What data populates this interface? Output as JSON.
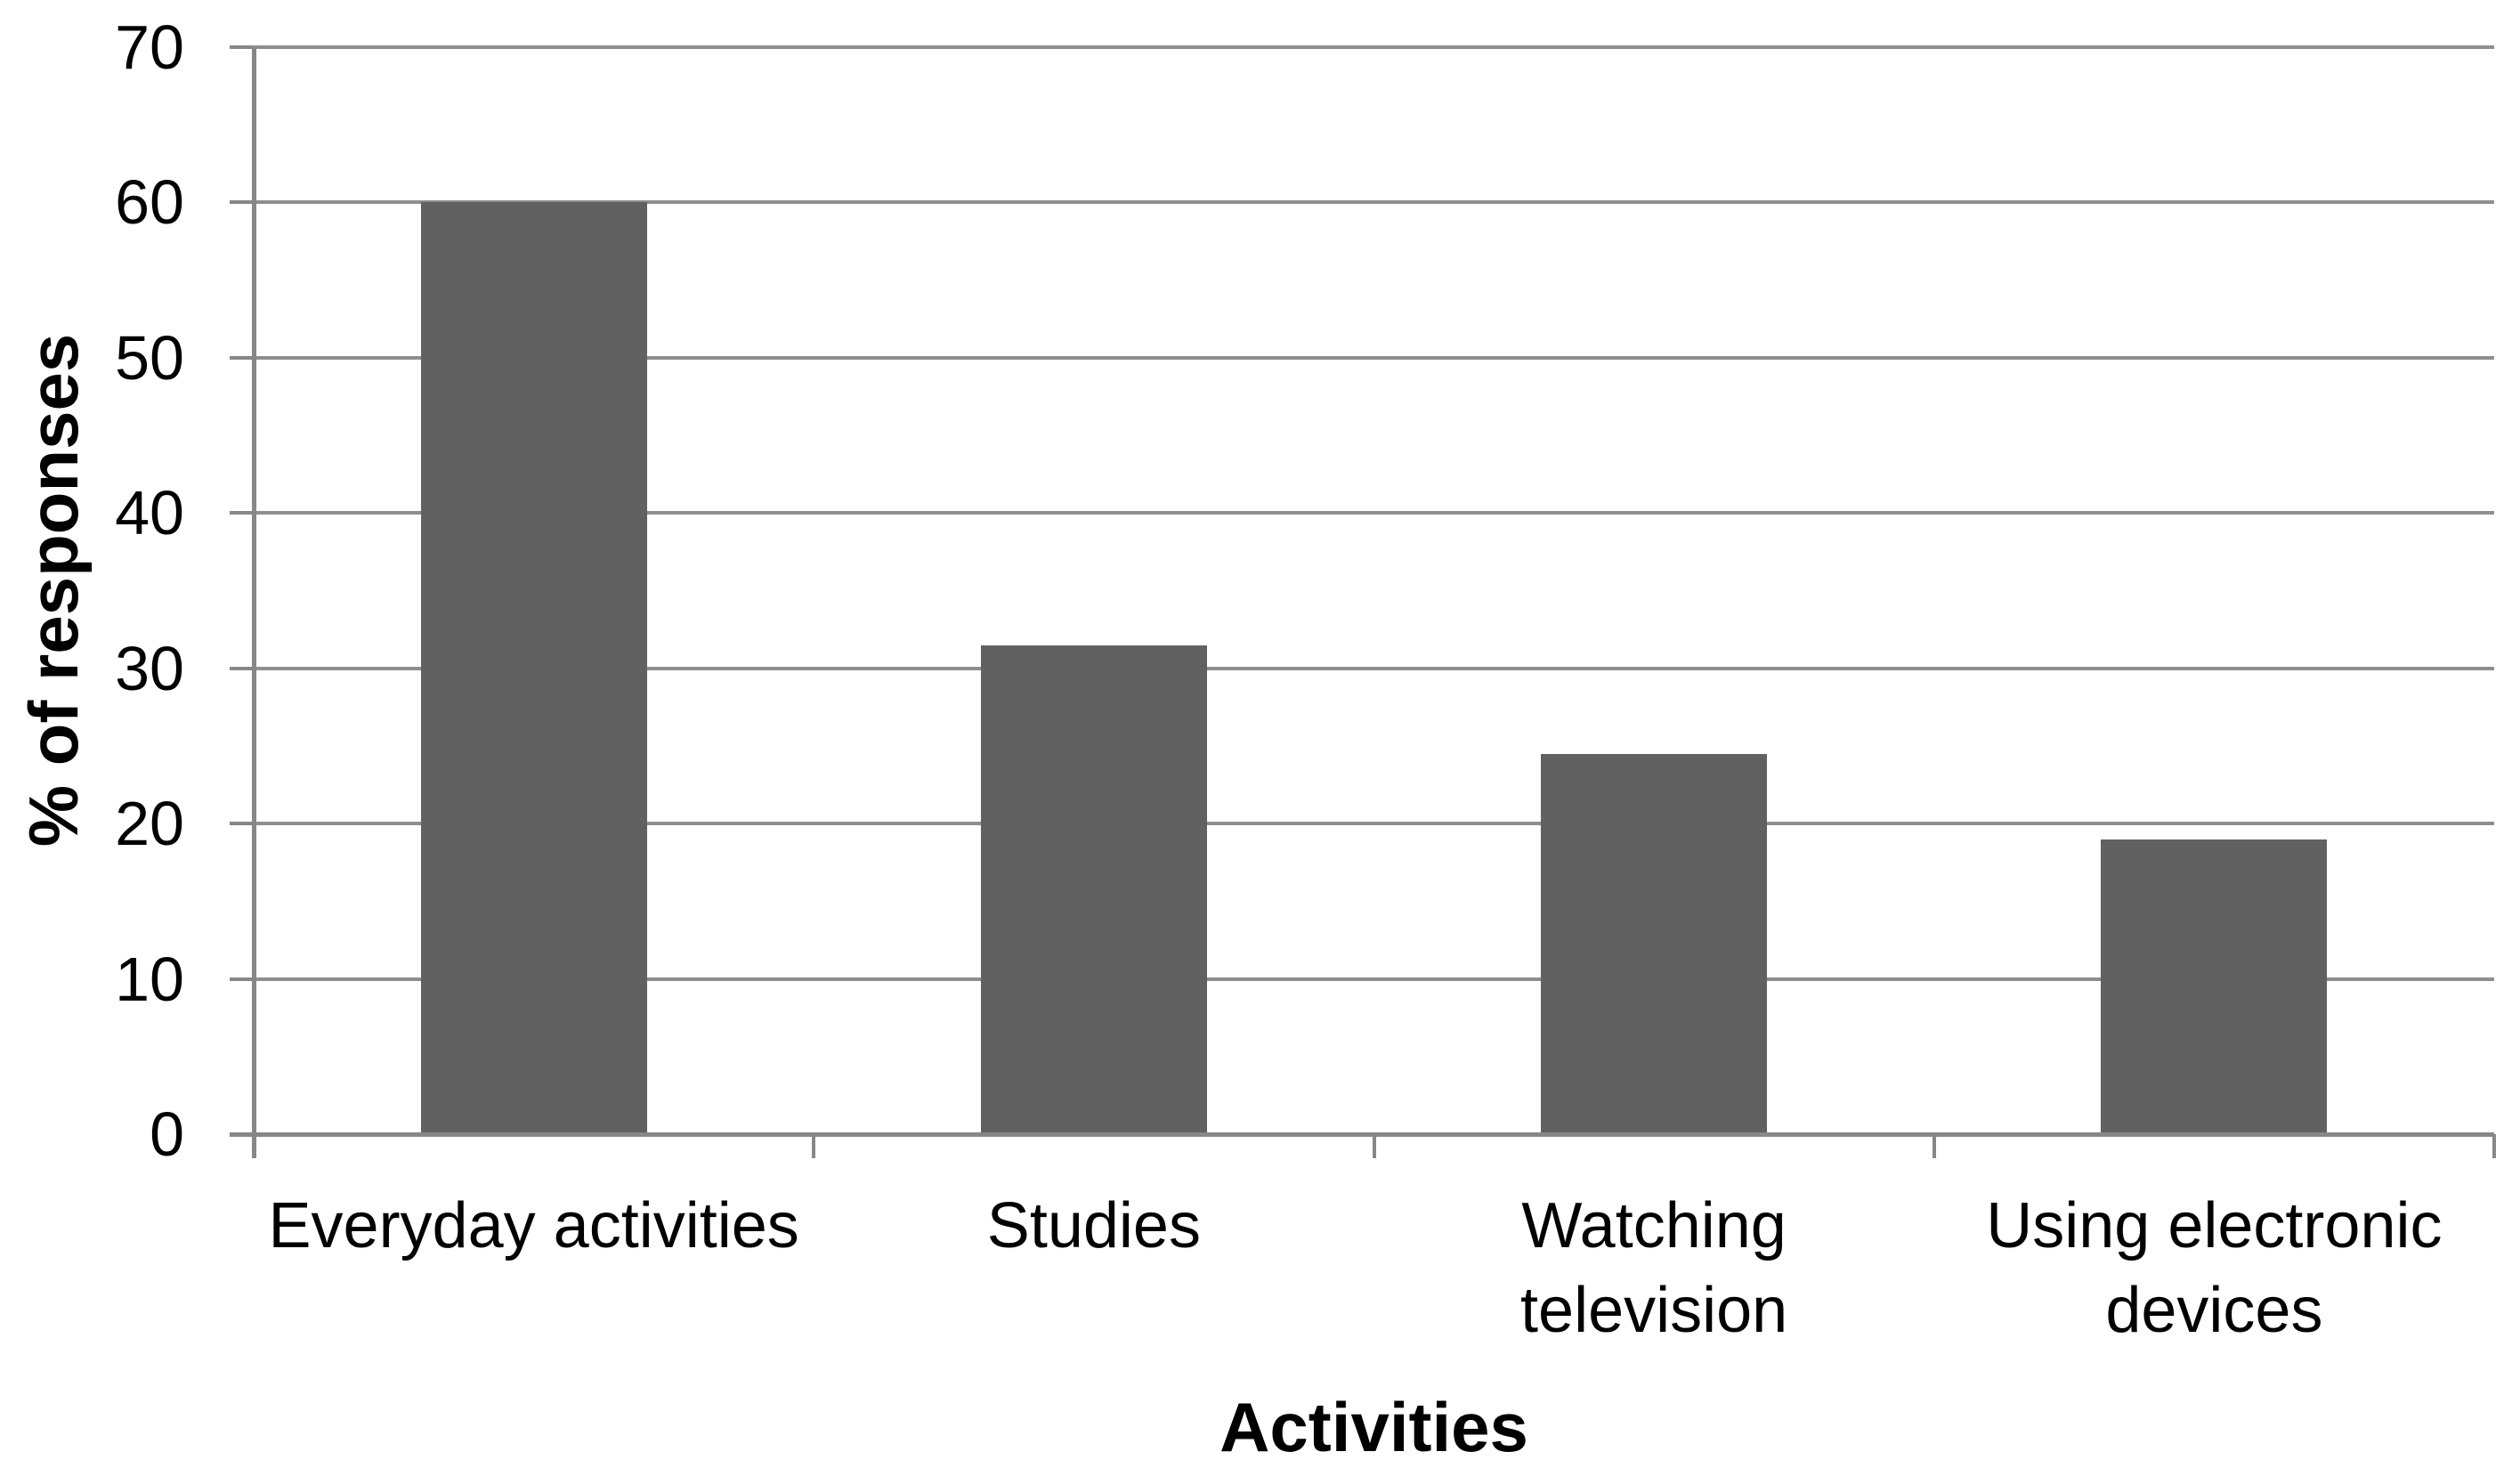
{
  "chart_data": {
    "type": "bar",
    "title": "",
    "xlabel": "Activities",
    "ylabel": "% of responses",
    "categories": [
      "Everyday activities",
      "Studies",
      "Watching television",
      "Using electronic devices"
    ],
    "category_label_lines": [
      [
        "Everyday activities"
      ],
      [
        "Studies"
      ],
      [
        "Watching",
        "television"
      ],
      [
        "Using electronic",
        "devices"
      ]
    ],
    "values": [
      60,
      31.5,
      24.5,
      19
    ],
    "series_name": "% of responses",
    "ylim": [
      0,
      70
    ],
    "ytick_step": 10,
    "ytick_labels": [
      "0",
      "10",
      "20",
      "30",
      "40",
      "50",
      "60",
      "70"
    ],
    "grid": true,
    "legend": false,
    "colors": {
      "bar_fill": "#616161",
      "gridline": "#8e8e8e",
      "axis": "#878787",
      "text": "#000000",
      "background": "#ffffff"
    }
  }
}
